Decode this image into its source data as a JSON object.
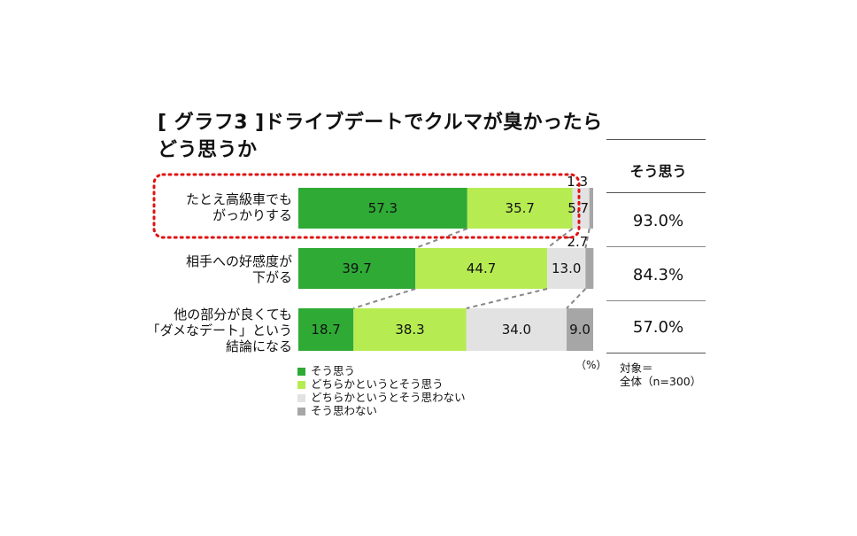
{
  "title_line1": "[ グラフ3 ]ドライブデートでクルマが臭かったら",
  "title_line2": "どう思うか",
  "chart_data": {
    "type": "bar",
    "orientation": "horizontal-stacked-100",
    "categories": [
      [
        "たとえ高級車でも",
        "がっかりする"
      ],
      [
        "相手への好感度が",
        "下がる"
      ],
      [
        "他の部分が良くても",
        "「ダメなデート」という",
        "結論になる"
      ]
    ],
    "series": [
      {
        "name": "そう思う",
        "color": "#2eaa35",
        "values": [
          57.3,
          39.7,
          18.7
        ]
      },
      {
        "name": "どちらかというとそう思う",
        "color": "#b6ec52",
        "values": [
          35.7,
          44.7,
          38.3
        ]
      },
      {
        "name": "どちらかというとそう思わない",
        "color": "#e2e2e2",
        "values": [
          5.7,
          13.0,
          34.0
        ]
      },
      {
        "name": "そう思わない",
        "color": "#a6a6a6",
        "values": [
          1.3,
          2.7,
          9.0
        ]
      }
    ],
    "value_labels": [
      [
        "57.3",
        "35.7",
        "5.7",
        "1.3"
      ],
      [
        "39.7",
        "44.7",
        "13.0",
        "2.7"
      ],
      [
        "18.7",
        "38.3",
        "34.0",
        "9.0"
      ]
    ],
    "unit": "（%）",
    "xlim": [
      0,
      100
    ],
    "highlighted_category": 0
  },
  "summary": {
    "header": "そう思う",
    "values": [
      "93.0%",
      "84.3%",
      "57.0%"
    ]
  },
  "target_note": [
    "対象＝",
    "全体（n=300）"
  ]
}
